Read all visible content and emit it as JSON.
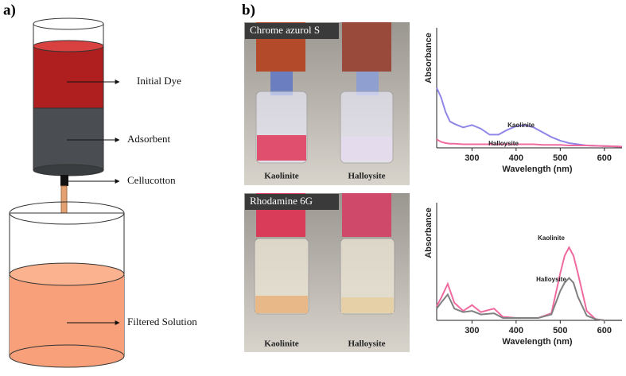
{
  "panel_a": {
    "label": "a)",
    "labels": [
      "Initial Dye",
      "Adsorbent",
      "Cellucotton",
      "Filtered Solution"
    ]
  },
  "panel_b": {
    "label": "b)",
    "photos": [
      {
        "title": "Chrome azurol S",
        "samples": [
          "Kaolinite",
          "Halloysite"
        ]
      },
      {
        "title": "Rhodamine 6G",
        "samples": [
          "Kaolinite",
          "Halloysite"
        ]
      }
    ]
  },
  "chart_data": [
    {
      "type": "line",
      "xlabel": "Wavelength (nm)",
      "ylabel": "Absorbance",
      "x": [
        220,
        230,
        240,
        250,
        260,
        280,
        300,
        320,
        340,
        360,
        380,
        400,
        420,
        440,
        460,
        480,
        500,
        520,
        540,
        560,
        600,
        640
      ],
      "xlim": [
        220,
        640
      ],
      "xticks": [
        300,
        400,
        500,
        600
      ],
      "ylim": [
        0,
        1
      ],
      "series": [
        {
          "name": "Kaolinite",
          "color": "#8f86e8",
          "values": [
            0.5,
            0.42,
            0.3,
            0.22,
            0.2,
            0.17,
            0.19,
            0.16,
            0.11,
            0.11,
            0.15,
            0.18,
            0.19,
            0.17,
            0.13,
            0.09,
            0.06,
            0.04,
            0.03,
            0.02,
            0.015,
            0.01
          ]
        },
        {
          "name": "Halloysite",
          "color": "#f06aa0",
          "values": [
            0.07,
            0.05,
            0.04,
            0.035,
            0.035,
            0.03,
            0.03,
            0.03,
            0.03,
            0.03,
            0.03,
            0.03,
            0.03,
            0.03,
            0.025,
            0.025,
            0.025,
            0.02,
            0.02,
            0.02,
            0.015,
            0.01
          ]
        }
      ]
    },
    {
      "type": "line",
      "xlabel": "Wavelength (nm)",
      "ylabel": "Absorbance",
      "x": [
        220,
        230,
        245,
        260,
        280,
        300,
        320,
        350,
        370,
        400,
        450,
        480,
        500,
        510,
        520,
        530,
        540,
        560,
        580,
        600,
        640
      ],
      "xlim": [
        220,
        640
      ],
      "xticks": [
        300,
        400,
        500,
        600
      ],
      "ylim": [
        0,
        1
      ],
      "series": [
        {
          "name": "Kaolinite",
          "color": "#f06aa0",
          "values": [
            0.12,
            0.19,
            0.31,
            0.15,
            0.08,
            0.13,
            0.07,
            0.1,
            0.03,
            0.02,
            0.02,
            0.06,
            0.4,
            0.55,
            0.62,
            0.55,
            0.4,
            0.08,
            0.01,
            0,
            0
          ]
        },
        {
          "name": "Halloysite",
          "color": "#808080",
          "values": [
            0.1,
            0.15,
            0.22,
            0.1,
            0.07,
            0.08,
            0.05,
            0.06,
            0.02,
            0.02,
            0.02,
            0.05,
            0.25,
            0.32,
            0.36,
            0.32,
            0.2,
            0.04,
            0.01,
            0,
            0
          ]
        }
      ]
    }
  ]
}
